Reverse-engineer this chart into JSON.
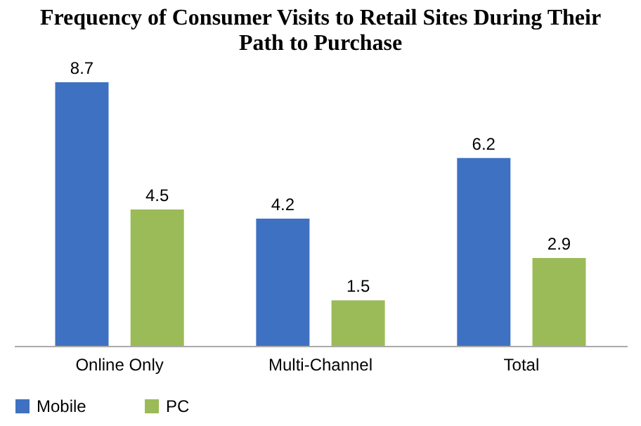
{
  "chart_data": {
    "type": "bar",
    "title": "Frequency of Consumer Visits to Retail Sites During Their Path to Purchase",
    "categories": [
      "Online Only",
      "Multi-Channel",
      "Total"
    ],
    "series": [
      {
        "name": "Mobile",
        "color": "#3f71c2",
        "values": [
          8.7,
          4.2,
          6.2
        ]
      },
      {
        "name": "PC",
        "color": "#9bbb59",
        "values": [
          4.5,
          1.5,
          2.9
        ]
      }
    ],
    "data_labels": true,
    "legend": "bottom left",
    "tick_labels": "x"
  }
}
